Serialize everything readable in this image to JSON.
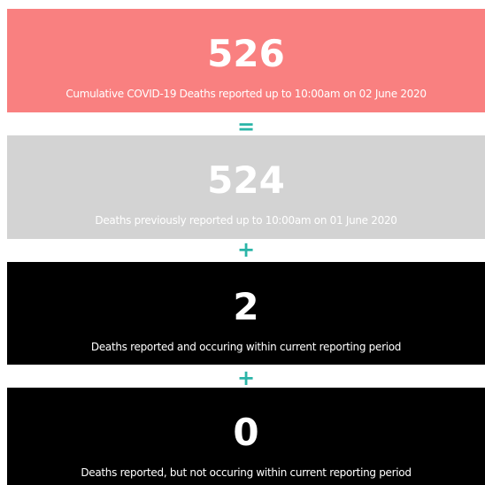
{
  "panels": [
    {
      "value": 526,
      "label": "Cumulative COVID-19 Deaths reported up to 10:00am on 02 June 2020"
    },
    {
      "value": 524,
      "label": "Deaths previously reported up to 10:00am on 01 June 2020"
    },
    {
      "value": 2,
      "label": "Deaths reported and occuring within current reporting period"
    },
    {
      "value": 0,
      "label": "Deaths reported, but not occuring within current reporting period"
    }
  ],
  "operators": [
    "=",
    "+",
    "+"
  ]
}
